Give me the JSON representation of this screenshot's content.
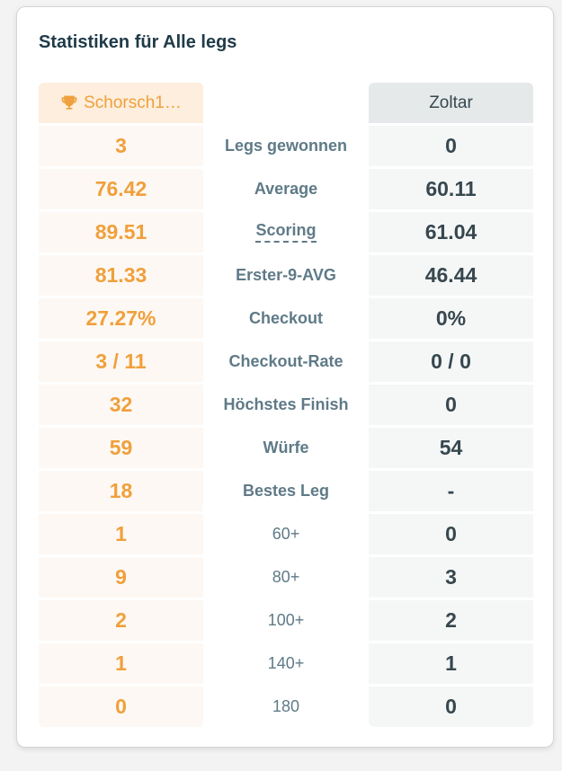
{
  "title": "Statistiken für Alle legs",
  "players": {
    "left": {
      "name": "Schorsch1…",
      "winner": true,
      "icon": "trophy-icon"
    },
    "right": {
      "name": "Zoltar"
    }
  },
  "colors": {
    "left_accent": "#f0a03c",
    "right_text": "#37474f",
    "label": "#5f7a87"
  },
  "rows": [
    {
      "label": "Legs gewonnen",
      "left": "3",
      "right": "0"
    },
    {
      "label": "Average",
      "left": "76.42",
      "right": "60.11"
    },
    {
      "label": "Scoring",
      "left": "89.51",
      "right": "61.04",
      "tooltip": true
    },
    {
      "label": "Erster-9-AVG",
      "left": "81.33",
      "right": "46.44"
    },
    {
      "label": "Checkout",
      "left": "27.27%",
      "right": "0%"
    },
    {
      "label": "Checkout-Rate",
      "left": "3 / 11",
      "right": "0 / 0"
    },
    {
      "label": "Höchstes Finish",
      "left": "32",
      "right": "0"
    },
    {
      "label": "Würfe",
      "left": "59",
      "right": "54"
    },
    {
      "label": "Bestes Leg",
      "left": "18",
      "right": "-"
    },
    {
      "label": "60+",
      "left": "1",
      "right": "0"
    },
    {
      "label": "80+",
      "left": "9",
      "right": "3"
    },
    {
      "label": "100+",
      "left": "2",
      "right": "2"
    },
    {
      "label": "140+",
      "left": "1",
      "right": "1"
    },
    {
      "label": "180",
      "left": "0",
      "right": "0"
    }
  ]
}
